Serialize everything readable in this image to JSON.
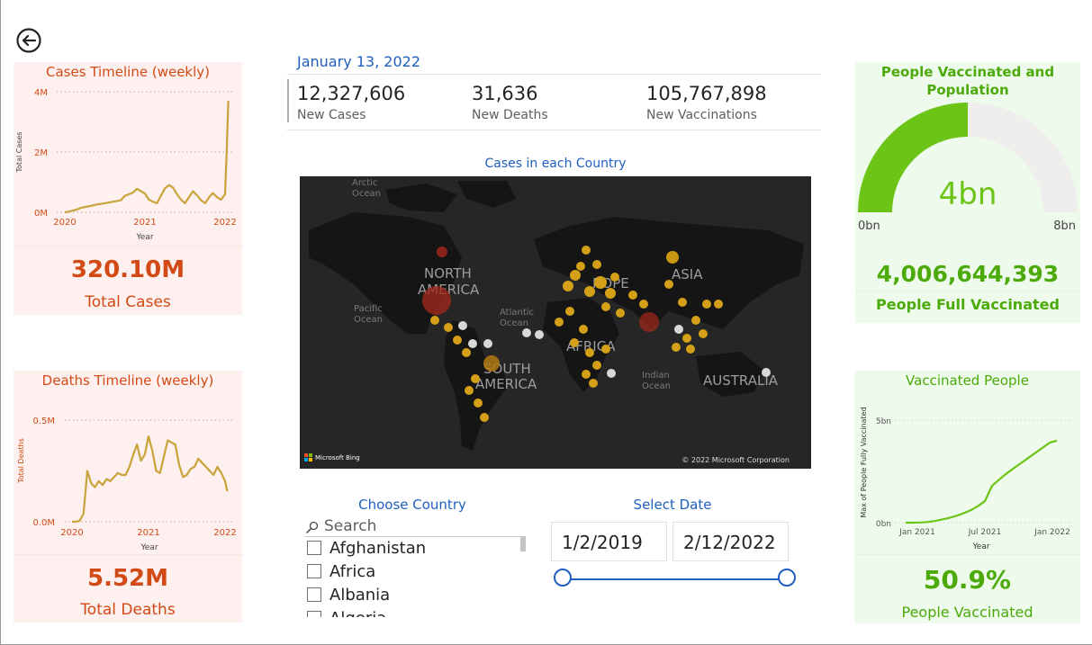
{
  "colors": {
    "orange_accent": "#d24a16",
    "green_accent": "#4caa0b",
    "blue_accent": "#1f5fbf",
    "line_gold": "#c8a43a",
    "gauge_fill": "#6cc417",
    "gauge_bg": "#efeeed",
    "map_bg": "#262626"
  },
  "nav": {
    "back_icon": "back-arrow-icon"
  },
  "cases_card": {
    "title": "Cases Timeline (weekly)",
    "total_value": "320.10M",
    "total_label": "Total Cases"
  },
  "deaths_card": {
    "title": "Deaths Timeline (weekly)",
    "total_value": "5.52M",
    "total_label": "Total Deaths"
  },
  "header": {
    "date": "January 13, 2022",
    "kpis": [
      {
        "value": "12,327,606",
        "label": "New Cases"
      },
      {
        "value": "31,636",
        "label": "New Deaths"
      },
      {
        "value": "105,767,898",
        "label": "New Vaccinations"
      }
    ]
  },
  "map": {
    "title": "Cases in each Country",
    "labels": {
      "arctic": [
        "Arctic",
        "Ocean"
      ],
      "north_america": [
        "NORTH",
        "AMERICA"
      ],
      "europe": "ROPE",
      "asia": "ASIA",
      "atlantic": [
        "Atlantic",
        "Ocean"
      ],
      "pacific": [
        "Pacific",
        "Ocean"
      ],
      "africa": "AFRICA",
      "south_america": [
        "SOUTH",
        "AMERICA"
      ],
      "indian": [
        "Indian",
        "Ocean"
      ],
      "australia": "AUSTRALIA"
    },
    "bing": "Microsoft Bing",
    "copyright": "© 2022 Microsoft Corporation"
  },
  "country_slicer": {
    "title": "Choose Country",
    "search_placeholder": "Search",
    "items": [
      "Afghanistan",
      "Africa",
      "Albania",
      "Algeria"
    ]
  },
  "date_slicer": {
    "title": "Select Date",
    "start": "1/2/2019",
    "end": "2/12/2022"
  },
  "vaccinated_population": {
    "title_line1": "People Vaccinated and",
    "title_line2": "Population",
    "gauge_value": "4bn",
    "gauge_min": "0bn",
    "gauge_max": "8bn",
    "gauge_fraction": 0.5,
    "full_vaccinated_value": "4,006,644,393",
    "full_vaccinated_label": "People Full Vaccinated"
  },
  "vaccinated_people": {
    "title": "Vaccinated People",
    "percent_value": "50.9%",
    "percent_label": "People Vaccinated"
  },
  "chart_data": [
    {
      "id": "cases",
      "type": "line",
      "xlabel": "Year",
      "ylabel": "Total Cases",
      "x_ticks": [
        "2020",
        "2021",
        "2022"
      ],
      "y_ticks": [
        "0M",
        "2M",
        "4M"
      ],
      "ylim": [
        0,
        4000000
      ],
      "x": [
        2020.0,
        2020.05,
        2020.1,
        2020.15,
        2020.2,
        2020.3,
        2020.4,
        2020.5,
        2020.6,
        2020.7,
        2020.75,
        2020.8,
        2020.85,
        2020.9,
        2020.95,
        2021.0,
        2021.05,
        2021.1,
        2021.15,
        2021.2,
        2021.25,
        2021.3,
        2021.35,
        2021.4,
        2021.45,
        2021.5,
        2021.55,
        2021.6,
        2021.65,
        2021.7,
        2021.75,
        2021.8,
        2021.85,
        2021.9,
        2021.95,
        2022.0,
        2022.02,
        2022.04
      ],
      "y": [
        0,
        20000,
        60000,
        90000,
        150000,
        200000,
        260000,
        300000,
        350000,
        400000,
        550000,
        600000,
        650000,
        780000,
        700000,
        620000,
        420000,
        350000,
        300000,
        550000,
        800000,
        900000,
        820000,
        600000,
        420000,
        300000,
        500000,
        700000,
        560000,
        400000,
        300000,
        500000,
        640000,
        500000,
        420000,
        600000,
        2000000,
        3700000
      ]
    },
    {
      "id": "deaths",
      "type": "line",
      "xlabel": "Year",
      "ylabel": "Total Deaths",
      "x_ticks": [
        "2020",
        "2021",
        "2022"
      ],
      "y_ticks": [
        "0.0M",
        "0.5M"
      ],
      "ylim": [
        0,
        500000
      ],
      "x": [
        2020.0,
        2020.05,
        2020.1,
        2020.15,
        2020.2,
        2020.25,
        2020.3,
        2020.35,
        2020.4,
        2020.45,
        2020.5,
        2020.55,
        2020.6,
        2020.65,
        2020.7,
        2020.75,
        2020.8,
        2020.85,
        2020.9,
        2020.95,
        2021.0,
        2021.05,
        2021.1,
        2021.15,
        2021.2,
        2021.25,
        2021.3,
        2021.35,
        2021.4,
        2021.45,
        2021.5,
        2021.55,
        2021.6,
        2021.65,
        2021.7,
        2021.75,
        2021.8,
        2021.85,
        2021.9,
        2021.95,
        2022.0,
        2022.03
      ],
      "y": [
        0,
        0,
        5000,
        40000,
        250000,
        190000,
        170000,
        200000,
        180000,
        210000,
        200000,
        220000,
        240000,
        230000,
        230000,
        270000,
        330000,
        380000,
        300000,
        330000,
        420000,
        350000,
        250000,
        240000,
        320000,
        400000,
        390000,
        380000,
        280000,
        220000,
        230000,
        260000,
        270000,
        310000,
        290000,
        270000,
        250000,
        230000,
        270000,
        240000,
        200000,
        150000
      ]
    },
    {
      "id": "vaccinated",
      "type": "line",
      "xlabel": "Year",
      "ylabel": "Max of People Fully Vaccinated",
      "x_ticks": [
        "Jan 2021",
        "Jul 2021",
        "Jan 2022"
      ],
      "y_ticks": [
        "0bn",
        "5bn"
      ],
      "ylim": [
        0,
        5000000000
      ],
      "x": [
        0,
        0.05,
        0.1,
        0.15,
        0.2,
        0.25,
        0.3,
        0.35,
        0.4,
        0.45,
        0.5,
        0.55,
        0.6,
        0.65,
        0.7,
        0.75,
        0.8,
        0.85,
        0.9,
        0.95,
        1.0,
        1.05
      ],
      "y": [
        0,
        0,
        10000000,
        30000000,
        80000000,
        150000000,
        230000000,
        330000000,
        450000000,
        600000000,
        800000000,
        1050000000,
        1800000000,
        2100000000,
        2400000000,
        2650000000,
        2900000000,
        3150000000,
        3400000000,
        3650000000,
        3900000000,
        4000000000
      ]
    }
  ]
}
